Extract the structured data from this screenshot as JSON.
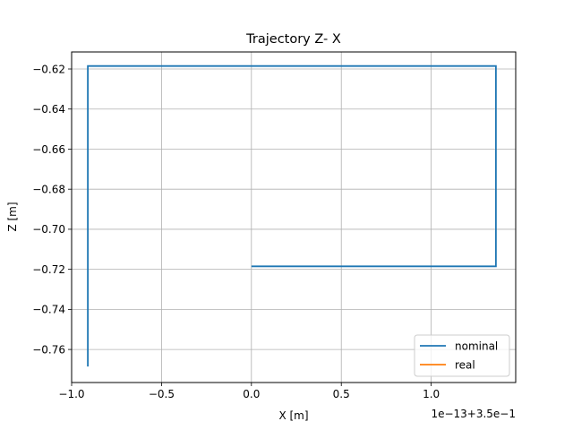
{
  "chart_data": {
    "type": "line",
    "title": "Trajectory Z- X",
    "xlabel": "X [m]",
    "ylabel": "Z [m]",
    "offset_text": "1e−13+3.5e−1",
    "xlim": [
      -1.0,
      1.47
    ],
    "ylim": [
      -0.7765,
      -0.6115
    ],
    "grid": true,
    "legend_loc": "lower right",
    "x_ticks": [
      {
        "value": -1.0,
        "label": "−1.0"
      },
      {
        "value": -0.5,
        "label": "−0.5"
      },
      {
        "value": 0.0,
        "label": "0.0"
      },
      {
        "value": 0.5,
        "label": "0.5"
      },
      {
        "value": 1.0,
        "label": "1.0"
      }
    ],
    "y_ticks": [
      {
        "value": -0.62,
        "label": "−0.62"
      },
      {
        "value": -0.64,
        "label": "−0.64"
      },
      {
        "value": -0.66,
        "label": "−0.66"
      },
      {
        "value": -0.68,
        "label": "−0.68"
      },
      {
        "value": -0.7,
        "label": "−0.70"
      },
      {
        "value": -0.72,
        "label": "−0.72"
      },
      {
        "value": -0.74,
        "label": "−0.74"
      },
      {
        "value": -0.76,
        "label": "−0.76"
      }
    ],
    "series": [
      {
        "name": "nominal",
        "color": "#1f77b4",
        "x": [
          0.0,
          1.36,
          1.36,
          -0.91,
          -0.91
        ],
        "y": [
          -0.7185,
          -0.7185,
          -0.6185,
          -0.6185,
          -0.7685
        ]
      },
      {
        "name": "real",
        "color": "#ff7f0e",
        "x": [],
        "y": []
      }
    ]
  }
}
